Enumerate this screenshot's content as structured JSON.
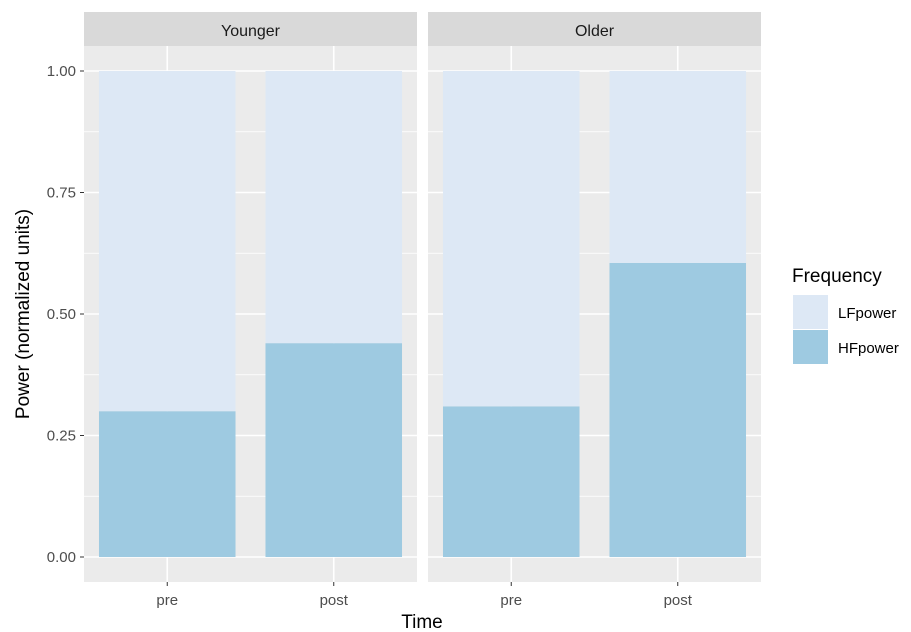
{
  "chart_data": {
    "type": "bar",
    "stacked": true,
    "xlabel": "Time",
    "ylabel": "Power (normalized units)",
    "ylim": [
      0,
      1
    ],
    "yticks": [
      "0.00",
      "0.25",
      "0.50",
      "0.75",
      "1.00"
    ],
    "categories": [
      "pre",
      "post"
    ],
    "legend": {
      "title": "Frequency",
      "placement": "right",
      "entries": [
        "LFpower",
        "HFpower"
      ]
    },
    "colors": {
      "LFpower": "#dde8f5",
      "HFpower": "#9ecae1"
    },
    "panels": [
      {
        "name": "Younger",
        "series": [
          {
            "name": "HFpower",
            "values": [
              0.3,
              0.44
            ]
          },
          {
            "name": "LFpower",
            "values": [
              0.7,
              0.56
            ]
          }
        ]
      },
      {
        "name": "Older",
        "series": [
          {
            "name": "HFpower",
            "values": [
              0.31,
              0.605
            ]
          },
          {
            "name": "LFpower",
            "values": [
              0.69,
              0.395
            ]
          }
        ]
      }
    ],
    "grid": true
  }
}
